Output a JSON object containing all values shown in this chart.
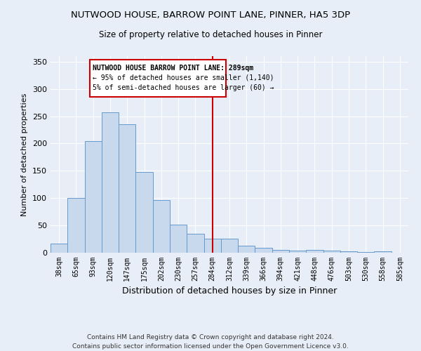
{
  "title": "NUTWOOD HOUSE, BARROW POINT LANE, PINNER, HA5 3DP",
  "subtitle": "Size of property relative to detached houses in Pinner",
  "xlabel": "Distribution of detached houses by size in Pinner",
  "ylabel": "Number of detached properties",
  "categories": [
    "38sqm",
    "65sqm",
    "93sqm",
    "120sqm",
    "147sqm",
    "175sqm",
    "202sqm",
    "230sqm",
    "257sqm",
    "284sqm",
    "312sqm",
    "339sqm",
    "366sqm",
    "394sqm",
    "421sqm",
    "448sqm",
    "476sqm",
    "503sqm",
    "530sqm",
    "558sqm",
    "585sqm"
  ],
  "values": [
    17,
    100,
    205,
    257,
    235,
    148,
    97,
    52,
    35,
    26,
    26,
    13,
    9,
    5,
    4,
    5,
    4,
    2,
    1,
    3,
    0
  ],
  "bar_color": "#c9d9ed",
  "bar_edge_color": "#6699cc",
  "vline_x_index": 9,
  "vline_color": "#cc0000",
  "annotation_title": "NUTWOOD HOUSE BARROW POINT LANE: 289sqm",
  "annotation_line1": "← 95% of detached houses are smaller (1,140)",
  "annotation_line2": "5% of semi-detached houses are larger (60) →",
  "annotation_box_color": "#ffffff",
  "annotation_box_edge_color": "#cc0000",
  "ylim": [
    0,
    360
  ],
  "background_color": "#e8eef7",
  "footer_line1": "Contains HM Land Registry data © Crown copyright and database right 2024.",
  "footer_line2": "Contains public sector information licensed under the Open Government Licence v3.0."
}
